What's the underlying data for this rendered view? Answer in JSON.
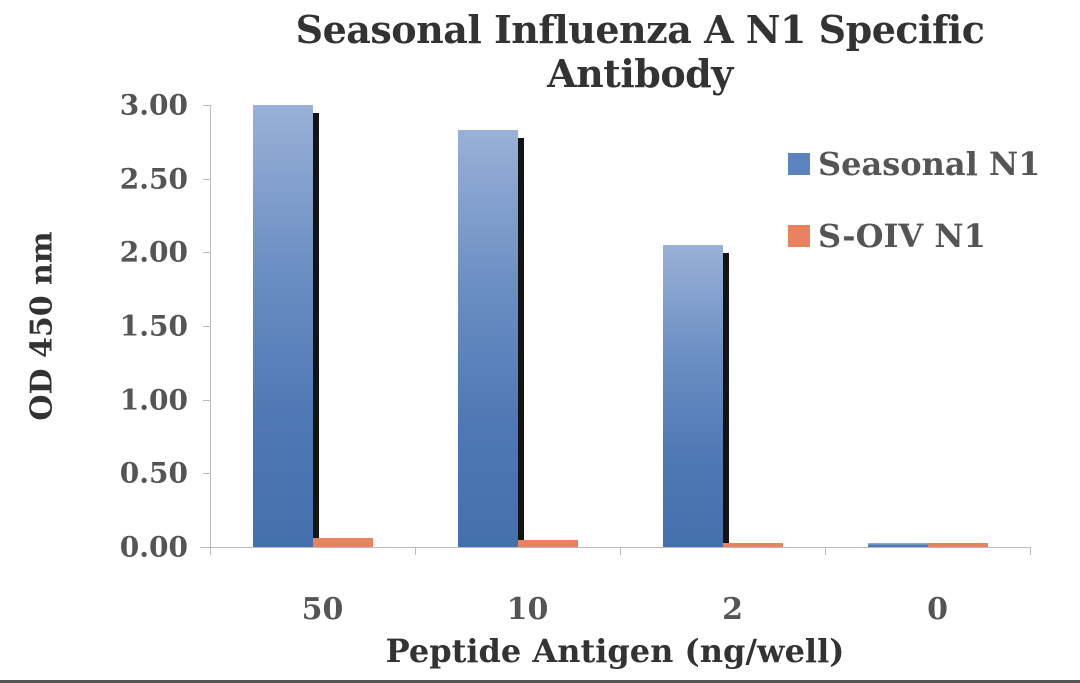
{
  "chart_data": {
    "type": "bar",
    "title": "Seasonal Influenza A N1 Specific Antibody",
    "title_lines": [
      "Seasonal Influenza A N1 Specific",
      "Antibody"
    ],
    "xlabel": "Peptide Antigen (ng/well)",
    "ylabel": "OD 450 nm",
    "categories": [
      "50",
      "10",
      "2",
      "0"
    ],
    "series": [
      {
        "name": "Seasonal N1",
        "color": "#4f78b4",
        "values": [
          3.0,
          2.83,
          2.05,
          0.03
        ]
      },
      {
        "name": "S-OIV N1",
        "color": "#e8825f",
        "values": [
          0.06,
          0.05,
          0.03,
          0.03
        ]
      }
    ],
    "ylim": [
      0,
      3.0
    ],
    "yticks": [
      "0.00",
      "0.50",
      "1.00",
      "1.50",
      "2.00",
      "2.50",
      "3.00"
    ],
    "grid": false,
    "legend_position": "right-top"
  }
}
